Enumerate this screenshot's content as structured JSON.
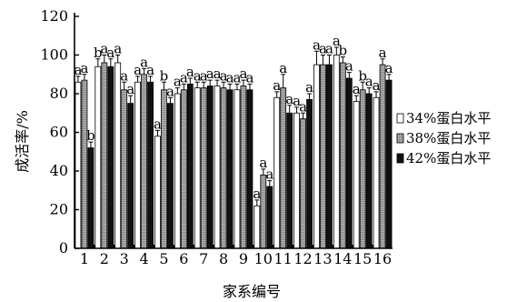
{
  "chart_data": {
    "type": "bar",
    "xlabel": "家系编号",
    "ylabel": "成活率/%",
    "ylim": [
      0,
      120
    ],
    "yticks": [
      0,
      20,
      40,
      60,
      80,
      100,
      120
    ],
    "categories": [
      "1",
      "2",
      "3",
      "4",
      "5",
      "6",
      "7",
      "8",
      "9",
      "10",
      "11",
      "12",
      "13",
      "14",
      "15",
      "16"
    ],
    "legend_position": "right",
    "series": [
      {
        "name": "34%蛋白水平",
        "fill": "#ffffff",
        "pattern": "white",
        "values": [
          86,
          94,
          96,
          86,
          58,
          80,
          83,
          84,
          82,
          22,
          78,
          70,
          95,
          100,
          76,
          78
        ],
        "errors": [
          3,
          4,
          4,
          3,
          3,
          3,
          3,
          3,
          3,
          3,
          3,
          3,
          7,
          4,
          3,
          3
        ],
        "labels": [
          "a",
          "b",
          "a",
          "a",
          "a",
          "a",
          "a",
          "a",
          "a",
          "a",
          "a",
          "a",
          "a",
          "a",
          "a",
          "a"
        ]
      },
      {
        "name": "38%蛋白水平",
        "fill": "#9a9a9a",
        "pattern": "gray",
        "values": [
          87,
          96,
          82,
          90,
          82,
          82,
          83,
          83,
          84,
          38,
          83,
          67,
          95,
          96,
          82,
          95
        ],
        "errors": [
          3,
          4,
          4,
          3,
          4,
          3,
          3,
          3,
          3,
          3,
          7,
          3,
          5,
          3,
          4,
          3
        ],
        "labels": [
          "a",
          "a",
          "a",
          "a",
          "b",
          "a",
          "a",
          "a",
          "a",
          "a",
          "a",
          "a",
          "a",
          "b",
          "b",
          "a"
        ]
      },
      {
        "name": "42%蛋白水平",
        "fill": "#111111",
        "pattern": "black",
        "values": [
          52,
          94,
          75,
          86,
          75,
          85,
          84,
          82,
          82,
          32,
          70,
          77,
          95,
          88,
          80,
          87
        ],
        "errors": [
          3,
          4,
          4,
          3,
          3,
          3,
          3,
          3,
          3,
          3,
          4,
          3,
          5,
          3,
          3,
          3
        ],
        "labels": [
          "b",
          "a",
          "a",
          "a",
          "a",
          "a",
          "a",
          "a",
          "a",
          "a",
          "a",
          "a",
          "a",
          "a",
          "a",
          "a"
        ]
      }
    ]
  }
}
